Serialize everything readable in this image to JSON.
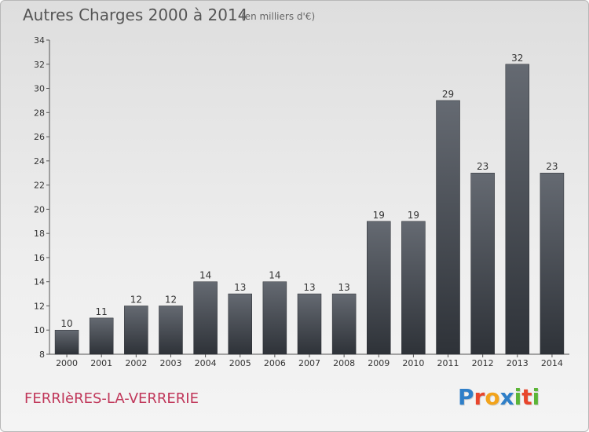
{
  "header": {
    "title": "Autres Charges 2000 à 2014",
    "subtitle": "(en milliers d'€)"
  },
  "footer": {
    "commune": "FERRIèRES-LA-VERRERIE",
    "logo_letters": [
      "P",
      "r",
      "o",
      "x",
      "i",
      "t",
      "i"
    ],
    "logo_colors": [
      "#2f7fc8",
      "#e8452c",
      "#f2a31b",
      "#2f7fc8",
      "#5bb536",
      "#e8452c",
      "#5bb536"
    ]
  },
  "colors": {
    "bar_light": "#656a72",
    "bar_dark": "#2e3238",
    "axis": "#555555"
  },
  "chart_data": {
    "type": "bar",
    "title": "Autres Charges 2000 à 2014",
    "subtitle": "(en milliers d'€)",
    "categories": [
      "2000",
      "2001",
      "2002",
      "2003",
      "2004",
      "2005",
      "2006",
      "2007",
      "2008",
      "2009",
      "2010",
      "2011",
      "2012",
      "2013",
      "2014"
    ],
    "values": [
      10,
      11,
      12,
      12,
      14,
      13,
      14,
      13,
      13,
      19,
      19,
      29,
      23,
      32,
      23
    ],
    "ylim": [
      8,
      34
    ],
    "yticks": [
      8,
      10,
      12,
      14,
      16,
      18,
      20,
      22,
      24,
      26,
      28,
      30,
      32,
      34
    ],
    "xlabel": "",
    "ylabel": "",
    "grid": false,
    "data_labels": true
  }
}
